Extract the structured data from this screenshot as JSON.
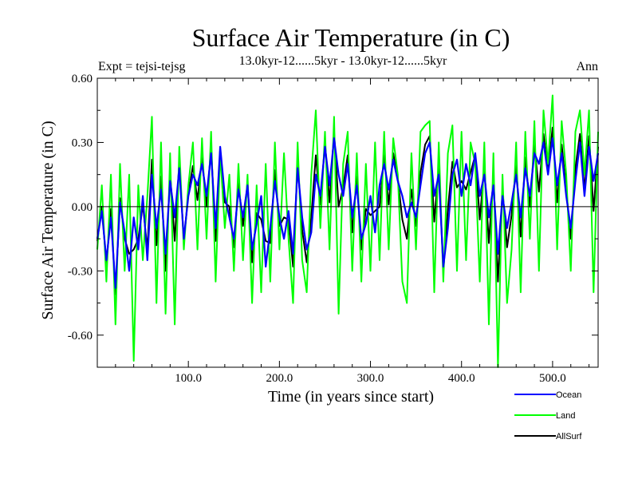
{
  "chart_data": {
    "type": "line",
    "title": "Surface Air Temperature (in C)",
    "subtitle_left": "Expt = tejsi-tejsg",
    "subtitle_center": "13.0kyr-12......5kyr - 13.0kyr-12......5kyr",
    "subtitle_right": "Ann",
    "xlabel": "Time (in years since start)",
    "ylabel": "Surface Air Temperature (in C)",
    "xlim": [
      0,
      550
    ],
    "ylim": [
      -0.75,
      0.6
    ],
    "x_ticks": [
      100,
      200,
      300,
      400,
      500
    ],
    "x_tick_labels": [
      "100.0",
      "200.0",
      "300.0",
      "400.0",
      "500.0"
    ],
    "y_ticks": [
      0.6,
      0.3,
      0.0,
      -0.3,
      -0.6
    ],
    "y_tick_labels": [
      "0.60",
      "0.30",
      "0.00",
      "-0.30",
      "-0.60"
    ],
    "zero_line": true,
    "legend_placement": "bottom-right",
    "series": [
      {
        "name": "Ocean",
        "color": "#0000ff",
        "x": [
          0,
          5,
          10,
          15,
          20,
          25,
          30,
          35,
          40,
          45,
          50,
          55,
          60,
          65,
          70,
          75,
          80,
          85,
          90,
          95,
          100,
          105,
          110,
          115,
          120,
          125,
          130,
          135,
          140,
          145,
          150,
          155,
          160,
          165,
          170,
          175,
          180,
          185,
          190,
          195,
          200,
          205,
          210,
          215,
          220,
          225,
          230,
          235,
          240,
          245,
          250,
          255,
          260,
          265,
          270,
          275,
          280,
          285,
          290,
          295,
          300,
          305,
          310,
          315,
          320,
          325,
          330,
          335,
          340,
          345,
          350,
          355,
          360,
          365,
          370,
          375,
          380,
          385,
          390,
          395,
          400,
          405,
          410,
          415,
          420,
          425,
          430,
          435,
          440,
          445,
          450,
          455,
          460,
          465,
          470,
          475,
          480,
          485,
          490,
          495,
          500,
          505,
          510,
          515,
          520,
          525,
          530,
          535,
          540,
          545,
          550
        ],
        "values": [
          -0.15,
          -0.02,
          -0.25,
          -0.05,
          -0.38,
          0.02,
          -0.12,
          -0.3,
          -0.05,
          -0.2,
          0.05,
          -0.25,
          0.15,
          -0.1,
          0.08,
          -0.22,
          0.12,
          -0.05,
          0.18,
          -0.15,
          0.05,
          0.15,
          0.1,
          0.2,
          0.05,
          0.25,
          -0.1,
          0.28,
          0.05,
          -0.05,
          -0.15,
          0.08,
          -0.05,
          0.1,
          -0.2,
          -0.08,
          0.05,
          -0.28,
          -0.1,
          0.12,
          -0.05,
          -0.15,
          -0.02,
          -0.22,
          0.18,
          -0.05,
          -0.2,
          -0.12,
          0.15,
          0.05,
          0.28,
          0.1,
          0.32,
          0.15,
          0.05,
          0.2,
          -0.05,
          0.1,
          -0.15,
          -0.08,
          0.05,
          -0.12,
          0.1,
          0.2,
          0.08,
          0.22,
          0.12,
          0.05,
          -0.05,
          0.02,
          -0.05,
          0.1,
          0.25,
          0.3,
          0.05,
          0.15,
          -0.28,
          -0.1,
          0.15,
          0.22,
          0.05,
          0.2,
          0.1,
          0.25,
          0.05,
          0.15,
          -0.05,
          0.1,
          -0.22,
          0.05,
          -0.1,
          0.02,
          0.15,
          -0.05,
          0.18,
          0.05,
          0.25,
          0.2,
          0.3,
          0.15,
          0.32,
          0.1,
          0.25,
          0.05,
          -0.1,
          0.12,
          0.3,
          0.05,
          0.28,
          0.12,
          0.25
        ]
      },
      {
        "name": "Land",
        "color": "#00ff00",
        "x": [
          0,
          5,
          10,
          15,
          20,
          25,
          30,
          35,
          40,
          45,
          50,
          55,
          60,
          65,
          70,
          75,
          80,
          85,
          90,
          95,
          100,
          105,
          110,
          115,
          120,
          125,
          130,
          135,
          140,
          145,
          150,
          155,
          160,
          165,
          170,
          175,
          180,
          185,
          190,
          195,
          200,
          205,
          210,
          215,
          220,
          225,
          230,
          235,
          240,
          245,
          250,
          255,
          260,
          265,
          270,
          275,
          280,
          285,
          290,
          295,
          300,
          305,
          310,
          315,
          320,
          325,
          330,
          335,
          340,
          345,
          350,
          355,
          360,
          365,
          370,
          375,
          380,
          385,
          390,
          395,
          400,
          405,
          410,
          415,
          420,
          425,
          430,
          435,
          440,
          445,
          450,
          455,
          460,
          465,
          470,
          475,
          480,
          485,
          490,
          495,
          500,
          505,
          510,
          515,
          520,
          525,
          530,
          535,
          540,
          545,
          550
        ],
        "values": [
          -0.2,
          0.1,
          -0.35,
          0.15,
          -0.55,
          0.2,
          -0.3,
          0.15,
          -0.72,
          0.1,
          -0.25,
          0.05,
          0.42,
          -0.45,
          0.3,
          -0.5,
          0.25,
          -0.55,
          0.28,
          -0.2,
          0.1,
          0.3,
          -0.2,
          0.32,
          -0.15,
          0.35,
          -0.35,
          0.25,
          -0.1,
          0.15,
          -0.3,
          0.2,
          -0.25,
          0.15,
          -0.45,
          0.1,
          -0.4,
          0.2,
          -0.35,
          0.3,
          -0.2,
          0.25,
          -0.15,
          -0.45,
          0.3,
          -0.25,
          -0.4,
          0.15,
          0.45,
          -0.1,
          0.35,
          -0.2,
          0.42,
          -0.5,
          0.2,
          0.35,
          -0.3,
          0.25,
          -0.35,
          0.2,
          -0.3,
          0.3,
          -0.25,
          0.35,
          -0.2,
          0.32,
          0.15,
          -0.35,
          -0.45,
          0.25,
          -0.2,
          0.35,
          0.38,
          0.4,
          -0.4,
          0.3,
          -0.35,
          0.25,
          0.38,
          -0.3,
          0.35,
          -0.25,
          0.3,
          0.2,
          -0.35,
          0.3,
          -0.55,
          0.25,
          -0.75,
          0.15,
          -0.45,
          -0.2,
          0.3,
          -0.4,
          0.35,
          -0.15,
          0.4,
          -0.3,
          0.45,
          0.2,
          0.52,
          -0.2,
          0.4,
          0.15,
          -0.3,
          0.35,
          0.45,
          0.15,
          0.45,
          -0.4,
          0.35
        ]
      },
      {
        "name": "AllSurf",
        "color": "#000000",
        "x": [
          0,
          5,
          10,
          15,
          20,
          25,
          30,
          35,
          40,
          45,
          50,
          55,
          60,
          65,
          70,
          75,
          80,
          85,
          90,
          95,
          100,
          105,
          110,
          115,
          120,
          125,
          130,
          135,
          140,
          145,
          150,
          155,
          160,
          165,
          170,
          175,
          180,
          185,
          190,
          195,
          200,
          205,
          210,
          215,
          220,
          225,
          230,
          235,
          240,
          245,
          250,
          255,
          260,
          265,
          270,
          275,
          280,
          285,
          290,
          295,
          300,
          305,
          310,
          315,
          320,
          325,
          330,
          335,
          340,
          345,
          350,
          355,
          360,
          365,
          370,
          375,
          380,
          385,
          390,
          395,
          400,
          405,
          410,
          415,
          420,
          425,
          430,
          435,
          440,
          445,
          450,
          455,
          460,
          465,
          470,
          475,
          480,
          485,
          490,
          495,
          500,
          505,
          510,
          515,
          520,
          525,
          530,
          535,
          540,
          545,
          550
        ],
        "values": [
          -0.16,
          0.0,
          -0.27,
          -0.01,
          -0.41,
          0.04,
          -0.15,
          -0.22,
          -0.2,
          -0.15,
          0.01,
          -0.2,
          0.22,
          -0.18,
          0.14,
          -0.3,
          0.16,
          -0.16,
          0.21,
          -0.16,
          0.06,
          0.19,
          0.03,
          0.23,
          0.0,
          0.28,
          -0.16,
          0.27,
          0.02,
          0.0,
          -0.19,
          0.11,
          -0.09,
          0.11,
          -0.26,
          -0.03,
          -0.06,
          -0.16,
          -0.17,
          0.17,
          -0.09,
          -0.05,
          -0.06,
          -0.28,
          0.21,
          -0.11,
          -0.26,
          -0.05,
          0.24,
          0.01,
          0.3,
          0.02,
          0.35,
          0.0,
          0.09,
          0.24,
          -0.12,
          0.14,
          -0.2,
          -0.01,
          -0.04,
          -0.02,
          0.0,
          0.24,
          0.01,
          0.25,
          0.13,
          -0.06,
          -0.15,
          0.08,
          -0.09,
          0.16,
          0.29,
          0.33,
          -0.07,
          0.19,
          -0.3,
          -0.01,
          0.21,
          0.09,
          0.12,
          0.08,
          0.16,
          0.24,
          -0.06,
          0.19,
          -0.17,
          0.14,
          -0.35,
          0.08,
          -0.19,
          -0.04,
          0.2,
          -0.14,
          0.23,
          0.0,
          0.29,
          0.07,
          0.34,
          0.16,
          0.37,
          0.02,
          0.29,
          0.08,
          -0.15,
          0.18,
          0.34,
          0.08,
          0.33,
          -0.02,
          0.28
        ]
      }
    ]
  }
}
